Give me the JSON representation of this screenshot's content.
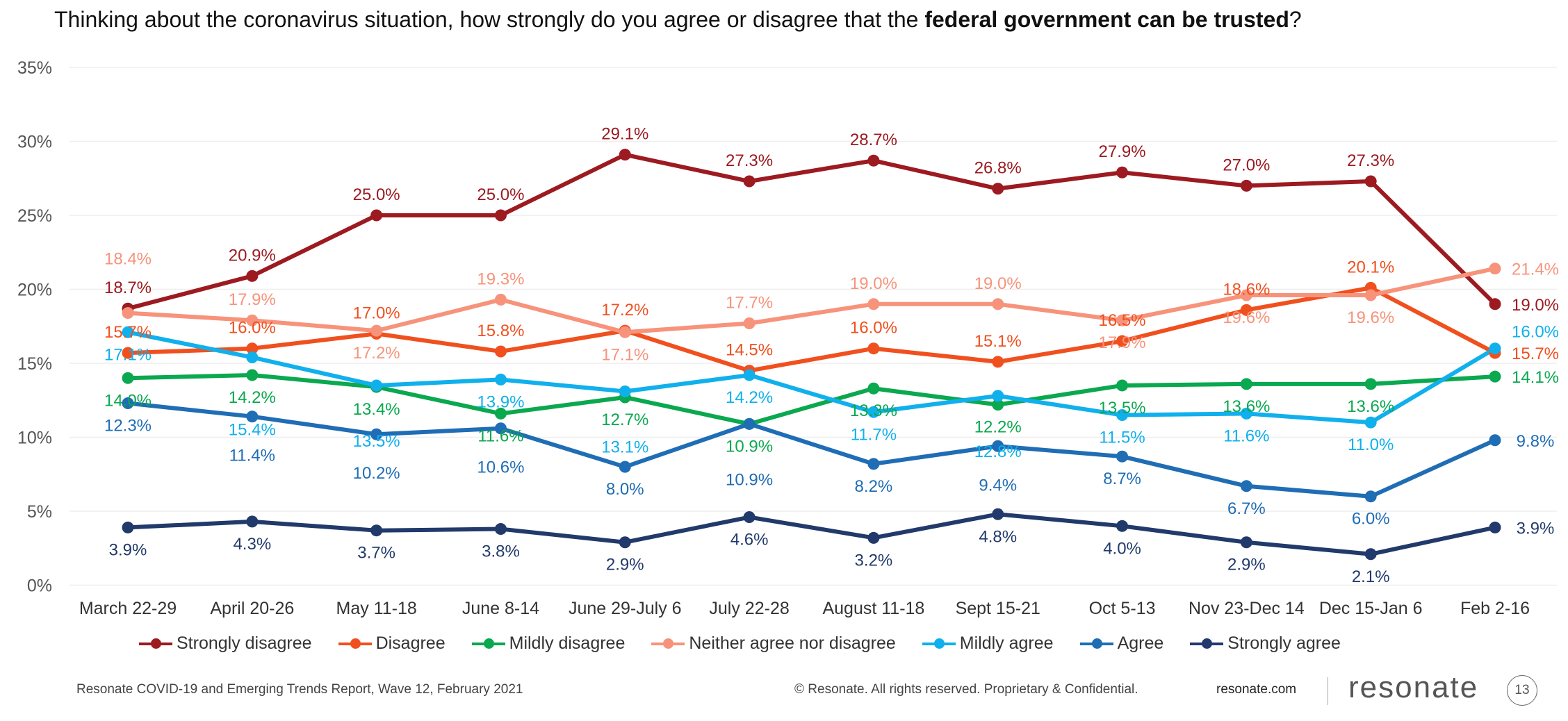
{
  "title": {
    "prefix": "Thinking about the coronavirus situation, how strongly do you agree or disagree that the ",
    "bold": "federal government can be trusted",
    "suffix": "?"
  },
  "chart_data": {
    "type": "line",
    "categories": [
      "March 22-29",
      "April 20-26",
      "May 11-18",
      "June 8-14",
      "June 29-July 6",
      "July 22-28",
      "August 11-18",
      "Sept 15-21",
      "Oct 5-13",
      "Nov 23-Dec 14",
      "Dec 15-Jan 6",
      "Feb 2-16"
    ],
    "ylim": [
      0,
      35
    ],
    "yticks": [
      "0%",
      "5%",
      "10%",
      "15%",
      "20%",
      "25%",
      "30%",
      "35%"
    ],
    "grid": true,
    "legend_position": "bottom",
    "series": [
      {
        "name": "Strongly disagree",
        "color": "#9c1a20",
        "values": [
          18.7,
          20.9,
          25.0,
          25.0,
          29.1,
          27.3,
          28.7,
          26.8,
          27.9,
          27.0,
          27.3,
          19.0
        ]
      },
      {
        "name": "Disagree",
        "color": "#f0501e",
        "values": [
          15.7,
          16.0,
          17.0,
          15.8,
          17.2,
          14.5,
          16.0,
          15.1,
          16.5,
          18.6,
          20.1,
          15.7
        ]
      },
      {
        "name": "Mildly disagree",
        "color": "#0aa84f",
        "values": [
          14.0,
          14.2,
          13.4,
          11.6,
          12.7,
          10.9,
          13.3,
          12.2,
          13.5,
          13.6,
          13.6,
          14.1
        ]
      },
      {
        "name": "Neither agree nor disagree",
        "color": "#f7937b",
        "values": [
          18.4,
          17.9,
          17.2,
          19.3,
          17.1,
          17.7,
          19.0,
          19.0,
          17.9,
          19.6,
          19.6,
          21.4
        ]
      },
      {
        "name": "Mildly agree",
        "color": "#10b0ec",
        "values": [
          17.1,
          15.4,
          13.5,
          13.9,
          13.1,
          14.2,
          11.7,
          12.8,
          11.5,
          11.6,
          11.0,
          16.0
        ]
      },
      {
        "name": "Agree",
        "color": "#1f6db5",
        "values": [
          12.3,
          11.4,
          10.2,
          10.6,
          8.0,
          10.9,
          8.2,
          9.4,
          8.7,
          6.7,
          6.0,
          9.8
        ]
      },
      {
        "name": "Strongly agree",
        "color": "#213a6b",
        "values": [
          3.9,
          4.3,
          3.7,
          3.8,
          2.9,
          4.6,
          3.2,
          4.8,
          4.0,
          2.9,
          2.1,
          3.9
        ]
      }
    ]
  },
  "footer": {
    "report": "Resonate COVID-19 and Emerging Trends Report, Wave 12, February 2021",
    "rights": "© Resonate. All rights reserved. Proprietary & Confidential.",
    "site": "resonate.com",
    "logo": "resonate",
    "page": "13"
  }
}
